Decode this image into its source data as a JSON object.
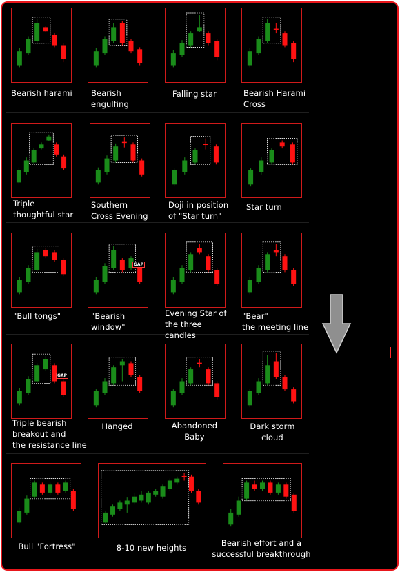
{
  "colors": {
    "frame": "#e8161b",
    "box": "#d01a1a",
    "bull": "#1a8c1a",
    "bear": "#ff1212",
    "dotted": "#dcdcdc",
    "text": "#ffffff",
    "arrow": "#8f8f8f"
  },
  "icons": {
    "arrow": "down-arrow-icon"
  },
  "chart_data": {
    "type": "candlestick-pattern-grid",
    "cells": [
      {
        "label": "Bearish harami",
        "candles": [
          {
            "o": 10,
            "c": 24,
            "h": 27,
            "l": 8
          },
          {
            "o": 22,
            "c": 36,
            "h": 39,
            "l": 20
          },
          {
            "o": 34,
            "c": 52,
            "h": 56,
            "l": 32
          },
          {
            "o": 48,
            "c": 44,
            "h": 49,
            "l": 43
          },
          {
            "o": 40,
            "c": 30,
            "h": 42,
            "l": 28
          },
          {
            "o": 30,
            "c": 16,
            "h": 32,
            "l": 13
          }
        ],
        "box": [
          2,
          3
        ],
        "gap": false
      },
      {
        "label": "Bearish\nengulfing",
        "candles": [
          {
            "o": 10,
            "c": 24,
            "h": 27,
            "l": 8
          },
          {
            "o": 22,
            "c": 36,
            "h": 39,
            "l": 20
          },
          {
            "o": 34,
            "c": 48,
            "h": 52,
            "l": 32
          },
          {
            "o": 52,
            "c": 32,
            "h": 54,
            "l": 30
          },
          {
            "o": 34,
            "c": 24,
            "h": 36,
            "l": 22
          },
          {
            "o": 26,
            "c": 12,
            "h": 28,
            "l": 10
          }
        ],
        "box": [
          2,
          3
        ],
        "gap": false
      },
      {
        "label": "Falling star",
        "candles": [
          {
            "o": 10,
            "c": 22,
            "h": 25,
            "l": 8
          },
          {
            "o": 20,
            "c": 32,
            "h": 35,
            "l": 18
          },
          {
            "o": 30,
            "c": 42,
            "h": 44,
            "l": 28
          },
          {
            "o": 44,
            "c": 48,
            "h": 60,
            "l": 43
          },
          {
            "o": 42,
            "c": 32,
            "h": 44,
            "l": 30
          },
          {
            "o": 34,
            "c": 18,
            "h": 36,
            "l": 15
          }
        ],
        "box": [
          2,
          3
        ],
        "gap": false
      },
      {
        "label": "Bearish Harami\nCross",
        "candles": [
          {
            "o": 10,
            "c": 24,
            "h": 27,
            "l": 8
          },
          {
            "o": 22,
            "c": 36,
            "h": 39,
            "l": 20
          },
          {
            "o": 34,
            "c": 52,
            "h": 56,
            "l": 32
          },
          {
            "o": 46,
            "c": 46,
            "h": 52,
            "l": 42
          },
          {
            "o": 42,
            "c": 30,
            "h": 44,
            "l": 28
          },
          {
            "o": 32,
            "c": 16,
            "h": 34,
            "l": 13
          }
        ],
        "box": [
          2,
          3
        ],
        "gap": false
      },
      {
        "label": "Triple\nthoughtful star",
        "candles": [
          {
            "o": 8,
            "c": 20,
            "h": 23,
            "l": 6
          },
          {
            "o": 18,
            "c": 30,
            "h": 33,
            "l": 16
          },
          {
            "o": 28,
            "c": 40,
            "h": 42,
            "l": 26
          },
          {
            "o": 42,
            "c": 46,
            "h": 48,
            "l": 41
          },
          {
            "o": 50,
            "c": 54,
            "h": 56,
            "l": 49
          },
          {
            "o": 46,
            "c": 36,
            "h": 48,
            "l": 34
          },
          {
            "o": 34,
            "c": 22,
            "h": 36,
            "l": 20
          }
        ],
        "box": [
          2,
          4
        ],
        "gap": false
      },
      {
        "label": "Southern\nCross Evening",
        "candles": [
          {
            "o": 8,
            "c": 20,
            "h": 23,
            "l": 6
          },
          {
            "o": 18,
            "c": 32,
            "h": 35,
            "l": 16
          },
          {
            "o": 30,
            "c": 44,
            "h": 47,
            "l": 28
          },
          {
            "o": 48,
            "c": 48,
            "h": 53,
            "l": 43
          },
          {
            "o": 46,
            "c": 30,
            "h": 48,
            "l": 28
          },
          {
            "o": 30,
            "c": 16,
            "h": 32,
            "l": 14
          }
        ],
        "box": [
          2,
          4
        ],
        "gap": false
      },
      {
        "label": "Doji in position\nof \"Star turn\"",
        "candles": [
          {
            "o": 6,
            "c": 20,
            "h": 22,
            "l": 4
          },
          {
            "o": 18,
            "c": 30,
            "h": 33,
            "l": 16
          },
          {
            "o": 28,
            "c": 40,
            "h": 42,
            "l": 26
          },
          {
            "o": 46,
            "c": 46,
            "h": 52,
            "l": 41
          },
          {
            "o": 44,
            "c": 28,
            "h": 46,
            "l": 26
          }
        ],
        "box": [
          2,
          3
        ],
        "gap": false
      },
      {
        "label": "Star turn",
        "candles": [
          {
            "o": 6,
            "c": 20,
            "h": 22,
            "l": 4
          },
          {
            "o": 18,
            "c": 30,
            "h": 33,
            "l": 16
          },
          {
            "o": 28,
            "c": 40,
            "h": 42,
            "l": 26
          },
          {
            "o": 48,
            "c": 44,
            "h": 50,
            "l": 42
          },
          {
            "o": 46,
            "c": 28,
            "h": 48,
            "l": 26
          }
        ],
        "box": [
          2,
          4
        ],
        "gap": false
      },
      {
        "label": "\"Bull tongs\"",
        "candles": [
          {
            "o": 8,
            "c": 20,
            "h": 23,
            "l": 6
          },
          {
            "o": 18,
            "c": 32,
            "h": 35,
            "l": 16
          },
          {
            "o": 30,
            "c": 48,
            "h": 51,
            "l": 28
          },
          {
            "o": 50,
            "c": 44,
            "h": 52,
            "l": 42
          },
          {
            "o": 48,
            "c": 40,
            "h": 50,
            "l": 38
          },
          {
            "o": 40,
            "c": 26,
            "h": 42,
            "l": 24
          }
        ],
        "box": [
          2,
          4
        ],
        "gap": false
      },
      {
        "label": "\"Bearish\n        window\"",
        "candles": [
          {
            "o": 8,
            "c": 20,
            "h": 23,
            "l": 6
          },
          {
            "o": 18,
            "c": 34,
            "h": 37,
            "l": 16
          },
          {
            "o": 32,
            "c": 50,
            "h": 54,
            "l": 30
          },
          {
            "o": 40,
            "c": 30,
            "h": 42,
            "l": 28
          },
          {
            "o": 32,
            "c": 42,
            "h": 44,
            "l": 30
          },
          {
            "o": 34,
            "c": 18,
            "h": 36,
            "l": 16
          }
        ],
        "box": [
          2,
          4
        ],
        "gap": true,
        "gap_text": "GAP"
      },
      {
        "label": "Evening Star of\nthe three candles",
        "candles": [
          {
            "o": 8,
            "c": 20,
            "h": 23,
            "l": 6
          },
          {
            "o": 18,
            "c": 32,
            "h": 35,
            "l": 16
          },
          {
            "o": 30,
            "c": 46,
            "h": 48,
            "l": 28
          },
          {
            "o": 52,
            "c": 48,
            "h": 56,
            "l": 46
          },
          {
            "o": 44,
            "c": 30,
            "h": 46,
            "l": 28
          },
          {
            "o": 30,
            "c": 16,
            "h": 32,
            "l": 14
          }
        ],
        "box": [
          2,
          4
        ],
        "gap": false
      },
      {
        "label": "\"Bear\"\nthe meeting line",
        "candles": [
          {
            "o": 8,
            "c": 20,
            "h": 23,
            "l": 6
          },
          {
            "o": 18,
            "c": 32,
            "h": 35,
            "l": 16
          },
          {
            "o": 30,
            "c": 46,
            "h": 48,
            "l": 28
          },
          {
            "o": 50,
            "c": 48,
            "h": 56,
            "l": 44
          },
          {
            "o": 44,
            "c": 30,
            "h": 46,
            "l": 28
          },
          {
            "o": 30,
            "c": 16,
            "h": 32,
            "l": 14
          }
        ],
        "box": [
          2,
          3
        ],
        "gap": false
      },
      {
        "label": "Triple bearish\nbreakout and\nthe resistance line",
        "candles": [
          {
            "o": 8,
            "c": 20,
            "h": 23,
            "l": 6
          },
          {
            "o": 18,
            "c": 32,
            "h": 35,
            "l": 16
          },
          {
            "o": 30,
            "c": 46,
            "h": 48,
            "l": 28
          },
          {
            "o": 42,
            "c": 52,
            "h": 55,
            "l": 40
          },
          {
            "o": 46,
            "c": 30,
            "h": 48,
            "l": 28
          },
          {
            "o": 30,
            "c": 16,
            "h": 32,
            "l": 14
          }
        ],
        "box": [
          2,
          3
        ],
        "gap": true,
        "gap_text": "GAP"
      },
      {
        "label": "Hanged",
        "candles": [
          {
            "o": 6,
            "c": 20,
            "h": 22,
            "l": 4
          },
          {
            "o": 18,
            "c": 30,
            "h": 33,
            "l": 16
          },
          {
            "o": 28,
            "c": 44,
            "h": 46,
            "l": 26
          },
          {
            "o": 46,
            "c": 50,
            "h": 52,
            "l": 30
          },
          {
            "o": 48,
            "c": 36,
            "h": 50,
            "l": 34
          },
          {
            "o": 34,
            "c": 20,
            "h": 36,
            "l": 18
          }
        ],
        "box": [
          2,
          4
        ],
        "gap": false
      },
      {
        "label": "Abandoned\nBaby",
        "candles": [
          {
            "o": 6,
            "c": 20,
            "h": 22,
            "l": 4
          },
          {
            "o": 18,
            "c": 30,
            "h": 33,
            "l": 16
          },
          {
            "o": 28,
            "c": 42,
            "h": 44,
            "l": 26
          },
          {
            "o": 48,
            "c": 48,
            "h": 52,
            "l": 44
          },
          {
            "o": 42,
            "c": 28,
            "h": 44,
            "l": 26
          },
          {
            "o": 28,
            "c": 14,
            "h": 30,
            "l": 12
          }
        ],
        "box": [
          2,
          4
        ],
        "gap": false
      },
      {
        "label": "Dark storm cloud",
        "candles": [
          {
            "o": 6,
            "c": 20,
            "h": 22,
            "l": 4
          },
          {
            "o": 18,
            "c": 30,
            "h": 33,
            "l": 16
          },
          {
            "o": 28,
            "c": 46,
            "h": 56,
            "l": 26
          },
          {
            "o": 50,
            "c": 34,
            "h": 58,
            "l": 32
          },
          {
            "o": 34,
            "c": 22,
            "h": 36,
            "l": 20
          },
          {
            "o": 22,
            "c": 10,
            "h": 24,
            "l": 8
          }
        ],
        "box": [
          2,
          3
        ],
        "gap": false
      },
      {
        "label": "Bull \"Fortress\"",
        "candles": [
          {
            "o": 8,
            "c": 20,
            "h": 23,
            "l": 6
          },
          {
            "o": 18,
            "c": 32,
            "h": 35,
            "l": 16
          },
          {
            "o": 34,
            "c": 48,
            "h": 50,
            "l": 32
          },
          {
            "o": 46,
            "c": 38,
            "h": 48,
            "l": 36
          },
          {
            "o": 38,
            "c": 46,
            "h": 48,
            "l": 36
          },
          {
            "o": 46,
            "c": 38,
            "h": 48,
            "l": 36
          },
          {
            "o": 40,
            "c": 48,
            "h": 50,
            "l": 38
          },
          {
            "o": 40,
            "c": 22,
            "h": 42,
            "l": 20
          }
        ],
        "box": [
          2,
          6
        ],
        "gap": false
      },
      {
        "label": "8-10 new heights",
        "candles": [
          {
            "o": 8,
            "c": 18,
            "h": 20,
            "l": 6
          },
          {
            "o": 16,
            "c": 24,
            "h": 26,
            "l": 14
          },
          {
            "o": 22,
            "c": 28,
            "h": 30,
            "l": 20
          },
          {
            "o": 26,
            "c": 30,
            "h": 33,
            "l": 18
          },
          {
            "o": 28,
            "c": 34,
            "h": 38,
            "l": 26
          },
          {
            "o": 30,
            "c": 36,
            "h": 40,
            "l": 28
          },
          {
            "o": 28,
            "c": 38,
            "h": 40,
            "l": 26
          },
          {
            "o": 36,
            "c": 40,
            "h": 42,
            "l": 34
          },
          {
            "o": 34,
            "c": 44,
            "h": 46,
            "l": 32
          },
          {
            "o": 42,
            "c": 50,
            "h": 52,
            "l": 40
          },
          {
            "o": 48,
            "c": 52,
            "h": 54,
            "l": 46
          },
          {
            "o": 54,
            "c": 54,
            "h": 58,
            "l": 50
          },
          {
            "o": 54,
            "c": 40,
            "h": 56,
            "l": 38
          },
          {
            "o": 40,
            "c": 28,
            "h": 42,
            "l": 26
          }
        ],
        "box": [
          0,
          11
        ],
        "gap": false
      },
      {
        "label": "Bearish effort and a\nsuccessful breakthrough",
        "candles": [
          {
            "o": 6,
            "c": 18,
            "h": 22,
            "l": 4
          },
          {
            "o": 16,
            "c": 30,
            "h": 34,
            "l": 14
          },
          {
            "o": 32,
            "c": 48,
            "h": 50,
            "l": 30
          },
          {
            "o": 46,
            "c": 42,
            "h": 50,
            "l": 40
          },
          {
            "o": 42,
            "c": 48,
            "h": 50,
            "l": 40
          },
          {
            "o": 48,
            "c": 38,
            "h": 50,
            "l": 36
          },
          {
            "o": 38,
            "c": 46,
            "h": 48,
            "l": 36
          },
          {
            "o": 46,
            "c": 34,
            "h": 48,
            "l": 32
          },
          {
            "o": 36,
            "c": 20,
            "h": 38,
            "l": 18
          }
        ],
        "box": [
          2,
          7
        ],
        "gap": false
      }
    ]
  }
}
